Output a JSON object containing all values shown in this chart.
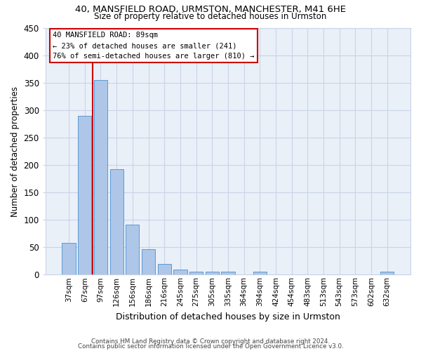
{
  "title1": "40, MANSFIELD ROAD, URMSTON, MANCHESTER, M41 6HE",
  "title2": "Size of property relative to detached houses in Urmston",
  "xlabel": "Distribution of detached houses by size in Urmston",
  "ylabel": "Number of detached properties",
  "footer1": "Contains HM Land Registry data © Crown copyright and database right 2024.",
  "footer2": "Contains public sector information licensed under the Open Government Licence v3.0.",
  "bin_labels": [
    "37sqm",
    "67sqm",
    "97sqm",
    "126sqm",
    "156sqm",
    "186sqm",
    "216sqm",
    "245sqm",
    "275sqm",
    "305sqm",
    "335sqm",
    "364sqm",
    "394sqm",
    "424sqm",
    "454sqm",
    "483sqm",
    "513sqm",
    "543sqm",
    "573sqm",
    "602sqm",
    "632sqm"
  ],
  "bar_values": [
    58,
    290,
    355,
    193,
    91,
    46,
    19,
    9,
    5,
    5,
    5,
    0,
    5,
    0,
    0,
    0,
    0,
    0,
    0,
    0,
    5
  ],
  "bar_color": "#aec6e8",
  "bar_edge_color": "#5b9bd5",
  "grid_color": "#c8d4e8",
  "background_color": "#eaf0f8",
  "vline_color": "#cc0000",
  "vline_x": 1.5,
  "annotation_line1": "40 MANSFIELD ROAD: 89sqm",
  "annotation_line2": "← 23% of detached houses are smaller (241)",
  "annotation_line3": "76% of semi-detached houses are larger (810) →",
  "annotation_box_facecolor": "#ffffff",
  "annotation_box_edgecolor": "#cc0000",
  "ylim": [
    0,
    450
  ],
  "yticks": [
    0,
    50,
    100,
    150,
    200,
    250,
    300,
    350,
    400,
    450
  ]
}
